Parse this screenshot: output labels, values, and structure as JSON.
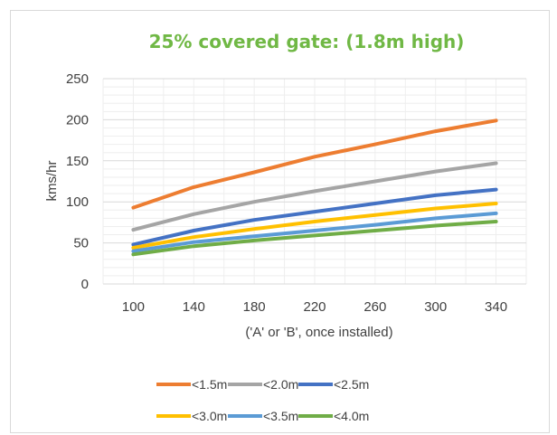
{
  "chart_data": {
    "type": "line",
    "title": "25% covered gate: (1.8m high)",
    "xlabel": "('A' or 'B', once installed)",
    "ylabel": "kms/hr",
    "x": [
      100,
      140,
      180,
      220,
      260,
      300,
      340
    ],
    "x_tick_labels": [
      "100",
      "140",
      "180",
      "220",
      "260",
      "300",
      "340"
    ],
    "y_ticks": [
      0,
      50,
      100,
      150,
      200,
      250
    ],
    "y_tick_labels": [
      "0",
      "50",
      "100",
      "150",
      "200",
      "250"
    ],
    "ylim": [
      0,
      250
    ],
    "grid": true,
    "legend_position": "bottom",
    "series": [
      {
        "name": "<1.5m",
        "color": "#ED7D31",
        "values": [
          93,
          118,
          136,
          155,
          170,
          186,
          199
        ]
      },
      {
        "name": "<2.0m",
        "color": "#A5A5A5",
        "values": [
          66,
          85,
          100,
          113,
          125,
          137,
          147
        ]
      },
      {
        "name": "<2.5m",
        "color": "#4472C4",
        "values": [
          48,
          65,
          78,
          88,
          98,
          108,
          115
        ]
      },
      {
        "name": "<3.0m",
        "color": "#FFC000",
        "values": [
          44,
          57,
          67,
          76,
          84,
          92,
          98
        ]
      },
      {
        "name": "<3.5m",
        "color": "#5B9BD5",
        "values": [
          40,
          51,
          58,
          65,
          72,
          80,
          86
        ]
      },
      {
        "name": "<4.0m",
        "color": "#70AD47",
        "values": [
          36,
          46,
          53,
          59,
          65,
          71,
          76
        ]
      }
    ]
  },
  "colors": {
    "title": "#70B845",
    "gridline": "#d9d9d9",
    "text": "#404040"
  }
}
